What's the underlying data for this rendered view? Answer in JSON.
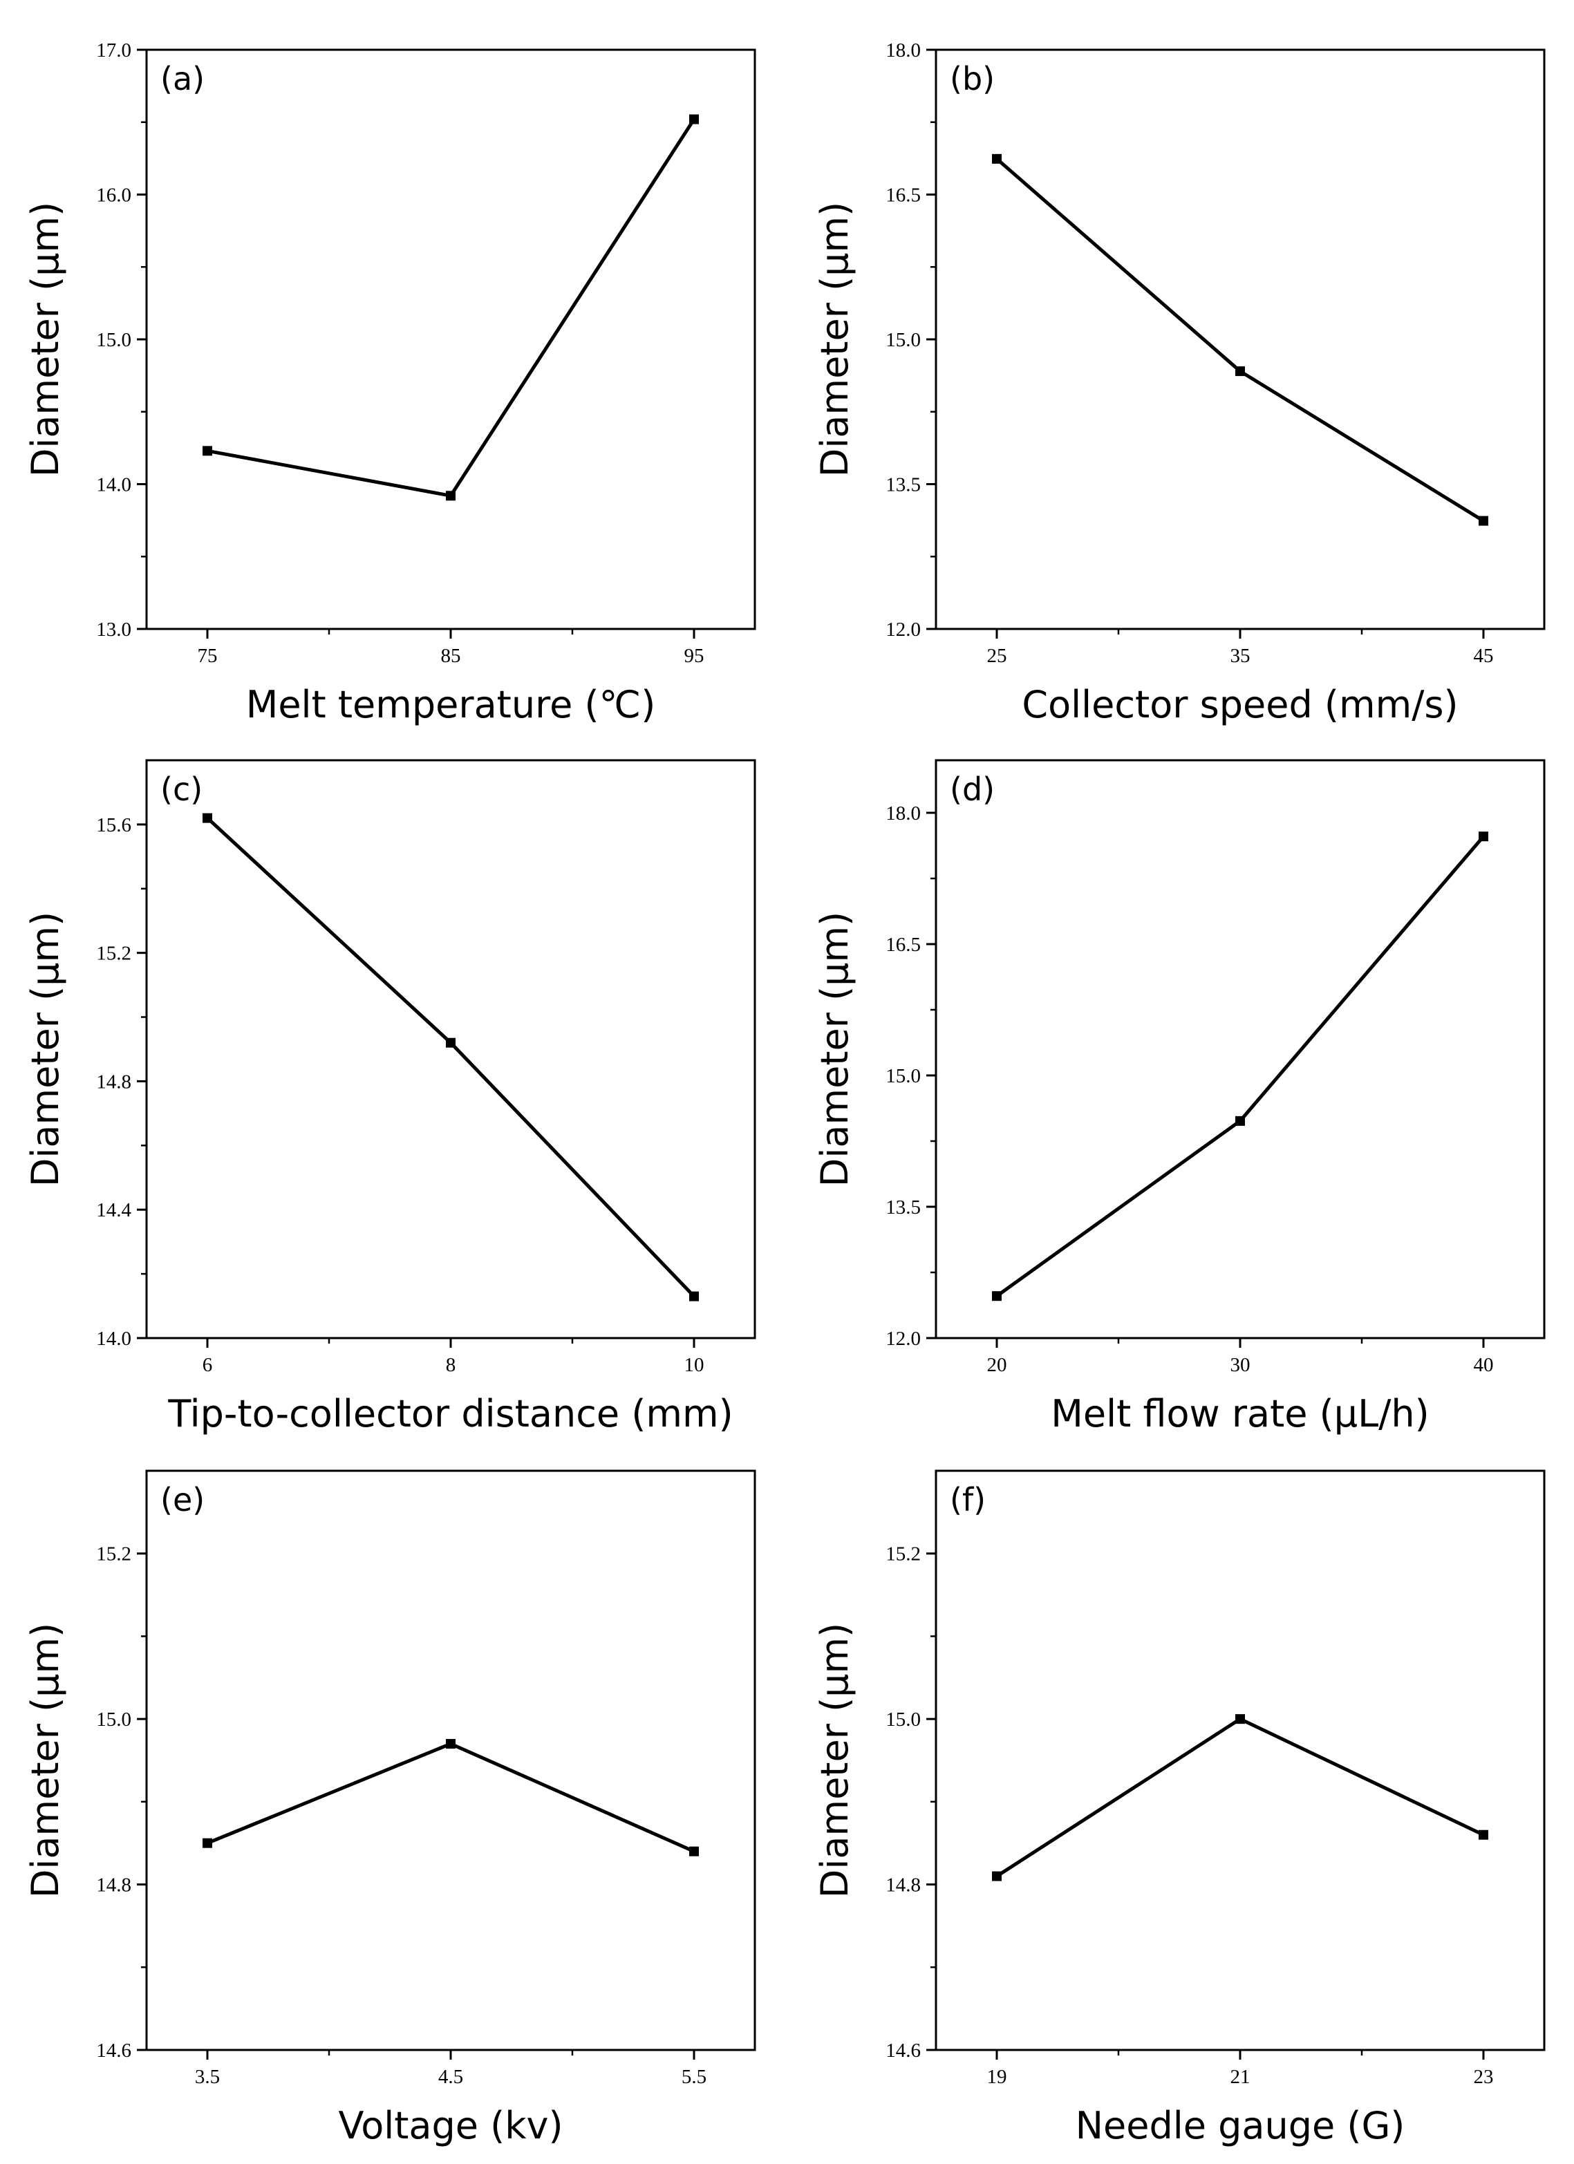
{
  "chart_data": [
    {
      "type": "line",
      "panel_label": "(a)",
      "xlabel": "Melt temperature (℃)",
      "ylabel": "Diameter (μm)",
      "x": [
        75,
        85,
        95
      ],
      "x_tick_labels": [
        "75",
        "85",
        "95"
      ],
      "values": [
        14.23,
        13.92,
        16.52
      ],
      "ylim": [
        13.0,
        17.0
      ],
      "y_ticks": [
        13.0,
        14.0,
        15.0,
        16.0,
        17.0
      ],
      "y_tick_labels": [
        "13.0",
        "14.0",
        "15.0",
        "16.0",
        "17.0"
      ],
      "legend": "none"
    },
    {
      "type": "line",
      "panel_label": "(b)",
      "xlabel": "Collector speed (mm/s)",
      "ylabel": "Diameter (μm)",
      "x": [
        25,
        35,
        45
      ],
      "x_tick_labels": [
        "25",
        "35",
        "45"
      ],
      "values": [
        16.87,
        14.67,
        13.12
      ],
      "ylim": [
        12.0,
        18.0
      ],
      "y_ticks": [
        12.0,
        13.5,
        15.0,
        16.5,
        18.0
      ],
      "y_tick_labels": [
        "12.0",
        "13.5",
        "15.0",
        "16.5",
        "18.0"
      ],
      "legend": "none"
    },
    {
      "type": "line",
      "panel_label": "(c)",
      "xlabel": "Tip-to-collector distance (mm)",
      "ylabel": "Diameter (μm)",
      "x": [
        6,
        8,
        10
      ],
      "x_tick_labels": [
        "6",
        "8",
        "10"
      ],
      "values": [
        15.62,
        14.92,
        14.13
      ],
      "ylim": [
        14.0,
        15.8
      ],
      "y_ticks": [
        14.0,
        14.4,
        14.8,
        15.2,
        15.6
      ],
      "y_tick_labels": [
        "14.0",
        "14.4",
        "14.8",
        "15.2",
        "15.6"
      ],
      "legend": "none"
    },
    {
      "type": "line",
      "panel_label": "(d)",
      "xlabel": "Melt flow rate  (μL/h)",
      "ylabel": "Diameter (μm)",
      "x": [
        20,
        30,
        40
      ],
      "x_tick_labels": [
        "20",
        "30",
        "40"
      ],
      "values": [
        12.48,
        14.48,
        17.73
      ],
      "ylim": [
        12.0,
        18.6
      ],
      "y_ticks": [
        12.0,
        13.5,
        15.0,
        16.5,
        18.0
      ],
      "y_tick_labels": [
        "12.0",
        "13.5",
        "15.0",
        "16.5",
        "18.0"
      ],
      "legend": "none"
    },
    {
      "type": "line",
      "panel_label": "(e)",
      "xlabel": "Voltage (kv)",
      "ylabel": "Diameter (μm)",
      "x": [
        3.5,
        4.5,
        5.5
      ],
      "x_tick_labels": [
        "3.5",
        "4.5",
        "5.5"
      ],
      "values": [
        14.85,
        14.97,
        14.84
      ],
      "ylim": [
        14.6,
        15.3
      ],
      "y_ticks": [
        14.6,
        14.8,
        15.0,
        15.2
      ],
      "y_tick_labels": [
        "14.6",
        "14.8",
        "15.0",
        "15.2"
      ],
      "legend": "none"
    },
    {
      "type": "line",
      "panel_label": "(f)",
      "xlabel": "Needle gauge (G)",
      "ylabel": "Diameter (μm)",
      "x": [
        19,
        21,
        23
      ],
      "x_tick_labels": [
        "19",
        "21",
        "23"
      ],
      "values": [
        14.81,
        15.0,
        14.86
      ],
      "ylim": [
        14.6,
        15.3
      ],
      "y_ticks": [
        14.6,
        14.8,
        15.0,
        15.2
      ],
      "y_tick_labels": [
        "14.6",
        "14.8",
        "15.0",
        "15.2"
      ],
      "legend": "none"
    }
  ]
}
